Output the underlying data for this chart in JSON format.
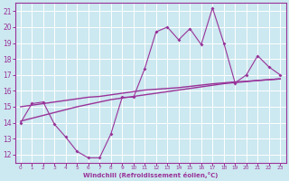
{
  "xlabel": "Windchill (Refroidissement éolien,°C)",
  "background_color": "#cce8f0",
  "grid_color": "#ffffff",
  "line_color": "#993399",
  "xlim": [
    -0.5,
    23.5
  ],
  "ylim": [
    11.5,
    21.5
  ],
  "xticks": [
    0,
    1,
    2,
    3,
    4,
    5,
    6,
    7,
    8,
    9,
    10,
    11,
    12,
    13,
    14,
    15,
    16,
    17,
    18,
    19,
    20,
    21,
    22,
    23
  ],
  "yticks": [
    12,
    13,
    14,
    15,
    16,
    17,
    18,
    19,
    20,
    21
  ],
  "main_y": [
    14.0,
    15.2,
    15.3,
    13.9,
    13.1,
    12.2,
    11.8,
    11.8,
    13.3,
    15.6,
    15.6,
    17.4,
    19.7,
    20.0,
    19.2,
    19.9,
    18.9,
    21.2,
    19.0,
    16.5,
    17.0,
    18.2,
    17.5,
    17.0
  ],
  "trend1_y": [
    15.0,
    15.1,
    15.2,
    15.3,
    15.4,
    15.5,
    15.6,
    15.65,
    15.75,
    15.85,
    15.95,
    16.05,
    16.1,
    16.15,
    16.2,
    16.28,
    16.36,
    16.44,
    16.5,
    16.56,
    16.6,
    16.65,
    16.7,
    16.75
  ],
  "trend2_y": [
    14.1,
    14.28,
    14.46,
    14.64,
    14.82,
    15.0,
    15.15,
    15.3,
    15.45,
    15.55,
    15.65,
    15.75,
    15.85,
    15.95,
    16.05,
    16.15,
    16.25,
    16.35,
    16.45,
    16.52,
    16.58,
    16.65,
    16.7,
    16.75
  ]
}
